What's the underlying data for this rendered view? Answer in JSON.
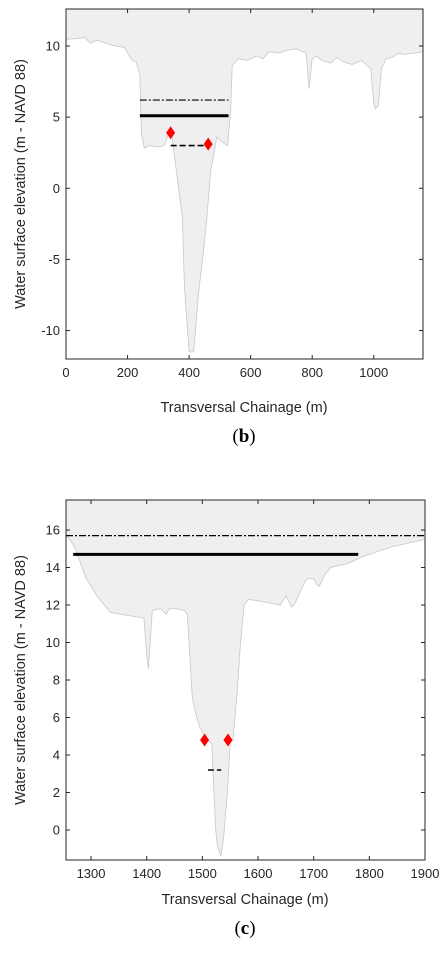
{
  "chart_data": [
    {
      "type": "area",
      "panel_label": {
        "open": "(",
        "letter": "b",
        "close": ")"
      },
      "xlabel": "Transversal Chainage (m)",
      "ylabel": "Water surface elevation (m - NAVD 88)",
      "xlim": [
        0,
        1160
      ],
      "ylim": [
        -12,
        12.6
      ],
      "xticks": [
        0,
        200,
        400,
        600,
        800,
        1000
      ],
      "yticks": [
        -10,
        -5,
        0,
        5,
        10
      ],
      "ytick_labels": [
        "-10",
        "-5",
        "0",
        "5",
        "10"
      ],
      "grid": false,
      "ground_profile": {
        "x": [
          0,
          10,
          30,
          60,
          80,
          100,
          130,
          160,
          190,
          200,
          215,
          228,
          240,
          245,
          255,
          270,
          300,
          320,
          340,
          360,
          378,
          385,
          400,
          415,
          430,
          450,
          458,
          470,
          490,
          510,
          525,
          535,
          540,
          560,
          590,
          620,
          640,
          660,
          690,
          720,
          750,
          780,
          790,
          800,
          815,
          830,
          860,
          880,
          900,
          930,
          960,
          990,
          1000,
          1005,
          1015,
          1025,
          1040,
          1060,
          1080,
          1100,
          1130,
          1160
        ],
        "y": [
          10.4,
          10.5,
          10.5,
          10.6,
          10.2,
          10.4,
          10.2,
          10.0,
          9.9,
          9.5,
          9.0,
          8.9,
          8.0,
          3.8,
          2.8,
          3.0,
          2.9,
          3.0,
          4.3,
          1.0,
          -2.0,
          -7.0,
          -11.5,
          -11.5,
          -7.5,
          -3.8,
          -2.0,
          1.2,
          3.6,
          3.2,
          3.0,
          5.5,
          8.6,
          9.1,
          9.0,
          9.3,
          9.1,
          9.6,
          9.5,
          9.7,
          9.8,
          9.5,
          7.0,
          9.1,
          9.3,
          9.0,
          8.8,
          9.2,
          8.9,
          8.7,
          9.0,
          8.4,
          6.0,
          5.6,
          5.8,
          8.4,
          9.1,
          9.2,
          9.5,
          9.4,
          9.5,
          9.6
        ]
      },
      "lines": [
        {
          "style": "dash-dot",
          "x": [
            240,
            528
          ],
          "y": [
            6.2,
            6.2
          ]
        },
        {
          "style": "solid-thick",
          "x": [
            240,
            528
          ],
          "y": [
            5.1,
            5.1
          ]
        },
        {
          "style": "dashed",
          "x": [
            340,
            458
          ],
          "y": [
            3.0,
            3.0
          ]
        }
      ],
      "markers": [
        {
          "shape": "diamond",
          "color": "#ff0000",
          "x": 340,
          "y": 3.9
        },
        {
          "shape": "diamond",
          "color": "#ff0000",
          "x": 462,
          "y": 3.1
        }
      ]
    },
    {
      "type": "area",
      "panel_label": {
        "open": "(",
        "letter": "c",
        "close": ")"
      },
      "xlabel": "Transversal Chainage (m)",
      "ylabel": "Water surface elevation (m - NAVD 88)",
      "xlim": [
        1255,
        1900
      ],
      "ylim": [
        -1.6,
        17.6
      ],
      "xticks": [
        1300,
        1400,
        1500,
        1600,
        1700,
        1800,
        1900
      ],
      "yticks": [
        0,
        2,
        4,
        6,
        8,
        10,
        12,
        14,
        16
      ],
      "grid": false,
      "ground_profile": {
        "x": [
          1255,
          1262,
          1272,
          1290,
          1310,
          1335,
          1395,
          1400,
          1403,
          1410,
          1425,
          1435,
          1440,
          1455,
          1468,
          1473,
          1478,
          1482,
          1490,
          1495,
          1505,
          1512,
          1517,
          1520,
          1524,
          1527,
          1533,
          1538,
          1545,
          1550,
          1555,
          1563,
          1568,
          1575,
          1583,
          1605,
          1640,
          1650,
          1660,
          1665,
          1685,
          1690,
          1700,
          1705,
          1710,
          1720,
          1730,
          1760,
          1790,
          1840,
          1900
        ],
        "y": [
          15.7,
          15.5,
          15.0,
          13.5,
          12.5,
          11.6,
          11.3,
          9.3,
          8.6,
          11.7,
          11.8,
          11.5,
          11.8,
          11.8,
          11.7,
          11.5,
          9.0,
          7.0,
          6.0,
          5.5,
          5.0,
          4.7,
          4.6,
          2.5,
          0.0,
          -0.8,
          -1.4,
          -0.5,
          2.0,
          4.6,
          4.8,
          7.5,
          9.8,
          12.0,
          12.3,
          12.2,
          12.0,
          12.5,
          11.9,
          12.0,
          13.3,
          13.4,
          13.4,
          13.1,
          13.0,
          13.6,
          14.0,
          14.2,
          14.6,
          15.1,
          15.5
        ]
      },
      "lines": [
        {
          "style": "dash-dot",
          "x": [
            1255,
            1900
          ],
          "y": [
            15.7,
            15.7
          ]
        },
        {
          "style": "solid-thick",
          "x": [
            1268,
            1780
          ],
          "y": [
            14.7,
            14.7
          ]
        },
        {
          "style": "dashed",
          "x": [
            1510,
            1534
          ],
          "y": [
            3.2,
            3.2
          ]
        }
      ],
      "markers": [
        {
          "shape": "diamond",
          "color": "#ff0000",
          "x": 1504,
          "y": 4.8
        },
        {
          "shape": "diamond",
          "color": "#ff0000",
          "x": 1546,
          "y": 4.8
        }
      ]
    }
  ],
  "colors": {
    "ground_fill": "#efefef",
    "ground_edge": "#c8c8c8",
    "axis": "#262626",
    "marker": "#ff0000"
  }
}
